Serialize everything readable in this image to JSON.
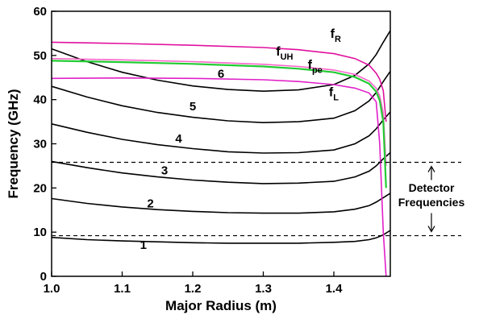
{
  "chart_data": {
    "type": "line",
    "xlabel": "Major Radius (m)",
    "ylabel": "Frequency (GHz)",
    "xlim": [
      1.0,
      1.48
    ],
    "ylim": [
      0,
      60
    ],
    "xticks": [
      "1.0",
      "1.1",
      "1.2",
      "1.3",
      "1.4"
    ],
    "yticks": [
      "0",
      "10",
      "20",
      "30",
      "40",
      "50",
      "60"
    ],
    "grid": false,
    "harmonics": [
      {
        "name": "1",
        "color": "#000000",
        "x": [
          1.0,
          1.05,
          1.1,
          1.15,
          1.2,
          1.25,
          1.3,
          1.35,
          1.4,
          1.43,
          1.45,
          1.46,
          1.47,
          1.48
        ],
        "y": [
          8.8,
          8.3,
          8.0,
          7.8,
          7.6,
          7.5,
          7.5,
          7.5,
          7.7,
          7.9,
          8.3,
          8.7,
          9.4,
          10.4
        ]
      },
      {
        "name": "2",
        "color": "#000000",
        "x": [
          1.0,
          1.05,
          1.1,
          1.15,
          1.2,
          1.25,
          1.3,
          1.35,
          1.4,
          1.43,
          1.45,
          1.46,
          1.47,
          1.48
        ],
        "y": [
          17.6,
          16.5,
          15.7,
          15.1,
          14.7,
          14.4,
          14.3,
          14.3,
          14.6,
          15.2,
          16.0,
          16.8,
          17.8,
          18.8
        ]
      },
      {
        "name": "3",
        "color": "#000000",
        "x": [
          1.0,
          1.05,
          1.1,
          1.15,
          1.2,
          1.25,
          1.3,
          1.35,
          1.4,
          1.43,
          1.45,
          1.46,
          1.47,
          1.48
        ],
        "y": [
          26.0,
          24.6,
          23.4,
          22.5,
          21.8,
          21.3,
          21.0,
          21.1,
          21.5,
          22.5,
          23.8,
          25.0,
          26.6,
          28.0
        ]
      },
      {
        "name": "4",
        "color": "#000000",
        "x": [
          1.0,
          1.05,
          1.1,
          1.15,
          1.2,
          1.25,
          1.3,
          1.35,
          1.4,
          1.43,
          1.45,
          1.46,
          1.47,
          1.48
        ],
        "y": [
          34.5,
          32.6,
          31.0,
          29.8,
          28.9,
          28.2,
          27.9,
          28.0,
          28.6,
          30.0,
          31.8,
          33.4,
          35.4,
          37.2
        ]
      },
      {
        "name": "5",
        "color": "#000000",
        "x": [
          1.0,
          1.05,
          1.1,
          1.15,
          1.2,
          1.25,
          1.3,
          1.35,
          1.4,
          1.43,
          1.45,
          1.46,
          1.47,
          1.48
        ],
        "y": [
          43.0,
          40.6,
          38.6,
          37.1,
          36.0,
          35.2,
          34.8,
          35.0,
          35.8,
          37.5,
          39.7,
          41.6,
          44.1,
          46.4
        ]
      },
      {
        "name": "6",
        "color": "#000000",
        "x": [
          1.0,
          1.05,
          1.1,
          1.15,
          1.2,
          1.25,
          1.3,
          1.35,
          1.4,
          1.43,
          1.45,
          1.46,
          1.47,
          1.48
        ],
        "y": [
          51.5,
          48.6,
          46.2,
          44.4,
          43.1,
          42.3,
          41.9,
          42.2,
          43.4,
          45.5,
          48.1,
          50.2,
          53.0,
          55.6
        ]
      }
    ],
    "cutoffs": [
      {
        "name": "f_R",
        "base": "f",
        "sub": "R",
        "color": "#e0109e",
        "x": [
          1.0,
          1.1,
          1.2,
          1.3,
          1.35,
          1.4,
          1.43,
          1.45,
          1.46,
          1.465,
          1.47,
          1.474
        ],
        "y": [
          53.0,
          52.7,
          52.3,
          51.8,
          51.3,
          50.4,
          49.3,
          47.8,
          46.0,
          44.6,
          42.0,
          35.0
        ]
      },
      {
        "name": "f_UH",
        "base": "f",
        "sub": "UH",
        "color": "#ff66cc",
        "x": [
          1.0,
          1.1,
          1.2,
          1.3,
          1.35,
          1.4,
          1.43,
          1.45,
          1.46,
          1.465,
          1.47,
          1.474
        ],
        "y": [
          49.3,
          49.0,
          48.6,
          48.0,
          47.5,
          46.7,
          45.7,
          44.2,
          42.6,
          40.8,
          37.0,
          25.0
        ]
      },
      {
        "name": "f_pe",
        "base": "f",
        "sub": "pe",
        "color": "#22cc33",
        "x": [
          1.0,
          1.1,
          1.2,
          1.3,
          1.35,
          1.4,
          1.43,
          1.45,
          1.46,
          1.465,
          1.47,
          1.474
        ],
        "y": [
          48.8,
          48.5,
          48.1,
          47.5,
          47.0,
          46.2,
          45.1,
          43.6,
          41.8,
          39.8,
          35.0,
          20.0
        ]
      },
      {
        "name": "f_L",
        "base": "f",
        "sub": "L",
        "color": "#e020c8",
        "x": [
          1.0,
          1.1,
          1.2,
          1.3,
          1.35,
          1.4,
          1.43,
          1.45,
          1.46,
          1.465,
          1.47,
          1.474
        ],
        "y": [
          44.8,
          44.9,
          44.8,
          44.5,
          44.1,
          43.4,
          42.6,
          41.5,
          39.5,
          30.0,
          10.0,
          0.0
        ]
      }
    ],
    "detector_band": {
      "low": 9.2,
      "high": 25.8,
      "label_line1": "Detector",
      "label_line2": "Frequencies"
    }
  }
}
